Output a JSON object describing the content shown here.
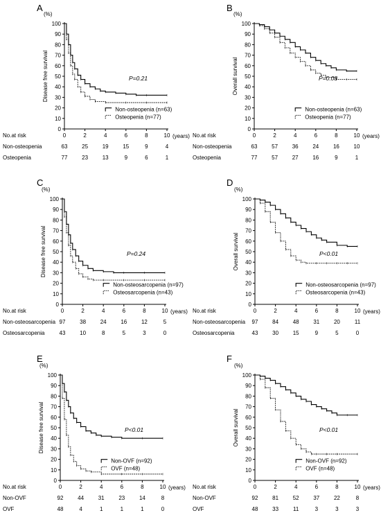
{
  "chart_data": [
    {
      "type": "line",
      "panel_label": "A",
      "ylabel": "Disease free survival",
      "y_unit": "(%)",
      "x_unit": "(years)",
      "xlim": [
        0,
        10
      ],
      "ylim": [
        0,
        100
      ],
      "x_ticks": [
        "0",
        "2",
        "4",
        "6",
        "8",
        "10"
      ],
      "y_ticks": [
        "0",
        "10",
        "20",
        "30",
        "40",
        "50",
        "60",
        "70",
        "80",
        "90",
        "100"
      ],
      "p_value": "P=0.21",
      "series": [
        {
          "name": "Non-osteopenia (n=63)",
          "style": "solid",
          "x": [
            0,
            0.2,
            0.4,
            0.6,
            0.8,
            1,
            1.3,
            1.6,
            2,
            2.5,
            3,
            3.5,
            4,
            5,
            6,
            7,
            8,
            10
          ],
          "y": [
            100,
            90,
            80,
            70,
            63,
            57,
            51,
            47,
            43,
            40,
            38,
            36,
            35,
            34,
            33,
            32,
            32,
            32
          ]
        },
        {
          "name": "Osteopenia (n=77)",
          "style": "dashed",
          "x": [
            0,
            0.2,
            0.4,
            0.6,
            0.8,
            1,
            1.3,
            1.6,
            2,
            2.5,
            3,
            4,
            6,
            8,
            10
          ],
          "y": [
            100,
            85,
            72,
            60,
            52,
            47,
            40,
            35,
            31,
            28,
            26,
            25,
            25,
            25,
            25
          ]
        }
      ],
      "risk_header": "No.at risk",
      "risk_rows": [
        {
          "label": "Non-osteopenia",
          "values": [
            "63",
            "25",
            "19",
            "15",
            "9",
            "4"
          ]
        },
        {
          "label": "Osteopenia",
          "values": [
            "77",
            "23",
            "13",
            "9",
            "6",
            "1"
          ]
        }
      ]
    },
    {
      "type": "line",
      "panel_label": "B",
      "ylabel": "Overall survival",
      "y_unit": "(%)",
      "x_unit": "(years)",
      "xlim": [
        0,
        10
      ],
      "ylim": [
        0,
        100
      ],
      "x_ticks": [
        "0",
        "2",
        "4",
        "6",
        "8",
        "10"
      ],
      "y_ticks": [
        "0",
        "10",
        "20",
        "30",
        "40",
        "50",
        "60",
        "70",
        "80",
        "90",
        "100"
      ],
      "p_value": "P=0.08",
      "series": [
        {
          "name": "Non-osteopenia (n=63)",
          "style": "solid",
          "x": [
            0,
            0.5,
            1,
            1.5,
            2,
            2.5,
            3,
            3.5,
            4,
            4.5,
            5,
            5.5,
            6,
            6.5,
            7,
            7.5,
            8,
            9,
            10
          ],
          "y": [
            100,
            99,
            97,
            94,
            91,
            88,
            85,
            82,
            78,
            75,
            72,
            68,
            65,
            62,
            60,
            58,
            56,
            55,
            55
          ]
        },
        {
          "name": "Osteopenia (n=77)",
          "style": "dashed",
          "x": [
            0,
            0.5,
            1,
            1.5,
            2,
            2.5,
            3,
            3.5,
            4,
            4.5,
            5,
            5.5,
            6,
            6.5,
            7,
            8,
            9,
            10
          ],
          "y": [
            100,
            98,
            95,
            91,
            87,
            82,
            77,
            72,
            68,
            64,
            60,
            56,
            53,
            51,
            49,
            47,
            47,
            47
          ]
        }
      ],
      "risk_header": "No.at risk",
      "risk_rows": [
        {
          "label": "Non-osteopenia",
          "values": [
            "63",
            "57",
            "36",
            "24",
            "16",
            "10"
          ]
        },
        {
          "label": "Osteopenia",
          "values": [
            "77",
            "57",
            "27",
            "16",
            "9",
            "1"
          ]
        }
      ]
    },
    {
      "type": "line",
      "panel_label": "C",
      "ylabel": "Disease free survival",
      "y_unit": "(%)",
      "x_unit": "(years)",
      "xlim": [
        0,
        10
      ],
      "ylim": [
        0,
        100
      ],
      "x_ticks": [
        "0",
        "2",
        "4",
        "6",
        "8",
        "10"
      ],
      "y_ticks": [
        "0",
        "10",
        "20",
        "30",
        "40",
        "50",
        "60",
        "70",
        "80",
        "90",
        "100"
      ],
      "p_value": "P=0.24",
      "series": [
        {
          "name": "Non-osteosarcopenia (n=97)",
          "style": "solid",
          "x": [
            0,
            0.2,
            0.4,
            0.6,
            0.8,
            1,
            1.3,
            1.6,
            2,
            2.5,
            3,
            4,
            5,
            6,
            8,
            10
          ],
          "y": [
            100,
            88,
            76,
            66,
            58,
            52,
            46,
            41,
            37,
            34,
            32,
            31,
            30,
            30,
            30,
            30
          ]
        },
        {
          "name": "Osteosarcopenia (n=43)",
          "style": "dashed",
          "x": [
            0,
            0.2,
            0.4,
            0.6,
            0.8,
            1,
            1.3,
            1.6,
            2,
            2.5,
            3,
            4,
            6,
            8,
            10
          ],
          "y": [
            100,
            83,
            68,
            56,
            46,
            40,
            34,
            29,
            26,
            24,
            23,
            23,
            23,
            23,
            23
          ]
        }
      ],
      "risk_header": "No.at risk",
      "risk_rows": [
        {
          "label": "Non-osteosarcopenia",
          "values": [
            "97",
            "38",
            "24",
            "16",
            "12",
            "5"
          ]
        },
        {
          "label": "Osteosarcopenia",
          "values": [
            "43",
            "10",
            "8",
            "5",
            "3",
            "0"
          ]
        }
      ]
    },
    {
      "type": "line",
      "panel_label": "D",
      "ylabel": "Overall survival",
      "y_unit": "(%)",
      "x_unit": "(years)",
      "xlim": [
        0,
        10
      ],
      "ylim": [
        0,
        100
      ],
      "x_ticks": [
        "0",
        "2",
        "4",
        "6",
        "8",
        "10"
      ],
      "y_ticks": [
        "0",
        "10",
        "20",
        "30",
        "40",
        "50",
        "60",
        "70",
        "80",
        "90",
        "100"
      ],
      "p_value": "P<0.01",
      "series": [
        {
          "name": "Non-osteosarcopenia (n=97)",
          "style": "solid",
          "x": [
            0,
            0.5,
            1,
            1.5,
            2,
            2.5,
            3,
            3.5,
            4,
            4.5,
            5,
            5.5,
            6,
            6.5,
            7,
            8,
            9,
            10
          ],
          "y": [
            100,
            99,
            97,
            94,
            90,
            86,
            82,
            78,
            75,
            72,
            69,
            66,
            63,
            61,
            59,
            56,
            55,
            55
          ]
        },
        {
          "name": "Osteosarcopenia (n=43)",
          "style": "dashed",
          "x": [
            0,
            0.5,
            1,
            1.5,
            2,
            2.5,
            3,
            3.5,
            4,
            4.5,
            5,
            6,
            7,
            8,
            9,
            10
          ],
          "y": [
            100,
            96,
            88,
            78,
            68,
            60,
            52,
            46,
            42,
            40,
            39,
            39,
            39,
            39,
            39,
            39
          ]
        }
      ],
      "risk_header": "No.at risk",
      "risk_rows": [
        {
          "label": "Non-osteosarcopenia",
          "values": [
            "97",
            "84",
            "48",
            "31",
            "20",
            "11"
          ]
        },
        {
          "label": "Osteosarcopenia",
          "values": [
            "43",
            "30",
            "15",
            "9",
            "5",
            "0"
          ]
        }
      ]
    },
    {
      "type": "line",
      "panel_label": "E",
      "ylabel": "Disease free survival",
      "y_unit": "(%)",
      "x_unit": "(years)",
      "xlim": [
        0,
        10
      ],
      "ylim": [
        0,
        100
      ],
      "x_ticks": [
        "0",
        "2",
        "4",
        "6",
        "8",
        "10"
      ],
      "y_ticks": [
        "0",
        "10",
        "20",
        "30",
        "40",
        "50",
        "60",
        "70",
        "80",
        "90",
        "100"
      ],
      "p_value": "P<0.01",
      "series": [
        {
          "name": "Non-OVF (n=92)",
          "style": "solid",
          "x": [
            0,
            0.2,
            0.4,
            0.6,
            0.8,
            1,
            1.3,
            1.6,
            2,
            2.5,
            3,
            3.5,
            4,
            5,
            6,
            8,
            10
          ],
          "y": [
            100,
            92,
            84,
            76,
            70,
            64,
            59,
            55,
            51,
            47,
            45,
            43,
            42,
            41,
            40,
            40,
            40
          ]
        },
        {
          "name": "OVF (n=48)",
          "style": "dashed",
          "x": [
            0,
            0.2,
            0.4,
            0.6,
            0.8,
            1,
            1.3,
            1.6,
            2,
            2.5,
            3,
            4,
            6,
            8,
            10
          ],
          "y": [
            100,
            78,
            58,
            43,
            32,
            24,
            18,
            14,
            11,
            9,
            8,
            6,
            6,
            6,
            6
          ]
        }
      ],
      "risk_header": "No.at risk",
      "risk_rows": [
        {
          "label": "Non-OVF",
          "values": [
            "92",
            "44",
            "31",
            "23",
            "14",
            "8"
          ]
        },
        {
          "label": "OVF",
          "values": [
            "48",
            "4",
            "1",
            "1",
            "1",
            "0"
          ]
        }
      ]
    },
    {
      "type": "line",
      "panel_label": "F",
      "ylabel": "Overall survival",
      "y_unit": "(%)",
      "x_unit": "(years)",
      "xlim": [
        0,
        10
      ],
      "ylim": [
        0,
        100
      ],
      "x_ticks": [
        "0",
        "2",
        "4",
        "6",
        "8",
        "10"
      ],
      "y_ticks": [
        "0",
        "10",
        "20",
        "30",
        "40",
        "50",
        "60",
        "70",
        "80",
        "90",
        "100"
      ],
      "p_value": "P<0.01",
      "series": [
        {
          "name": "Non-OVF (n=92)",
          "style": "solid",
          "x": [
            0,
            0.5,
            1,
            1.5,
            2,
            2.5,
            3,
            3.5,
            4,
            4.5,
            5,
            5.5,
            6,
            6.5,
            7,
            7.5,
            8,
            9,
            10
          ],
          "y": [
            100,
            99,
            97,
            95,
            92,
            89,
            86,
            83,
            80,
            77,
            75,
            72,
            70,
            68,
            66,
            64,
            62,
            62,
            62
          ]
        },
        {
          "name": "OVF (n=48)",
          "style": "dashed",
          "x": [
            0,
            0.5,
            1,
            1.5,
            2,
            2.5,
            3,
            3.5,
            4,
            4.5,
            5,
            5.5,
            6,
            7,
            8,
            10
          ],
          "y": [
            100,
            96,
            88,
            78,
            67,
            56,
            47,
            40,
            34,
            30,
            27,
            25,
            25,
            25,
            25,
            25
          ]
        }
      ],
      "risk_header": "No.at risk",
      "risk_rows": [
        {
          "label": "Non-OVF",
          "values": [
            "92",
            "81",
            "52",
            "37",
            "22",
            "8"
          ]
        },
        {
          "label": "OVF",
          "values": [
            "48",
            "33",
            "11",
            "3",
            "3",
            "3"
          ]
        }
      ]
    }
  ]
}
